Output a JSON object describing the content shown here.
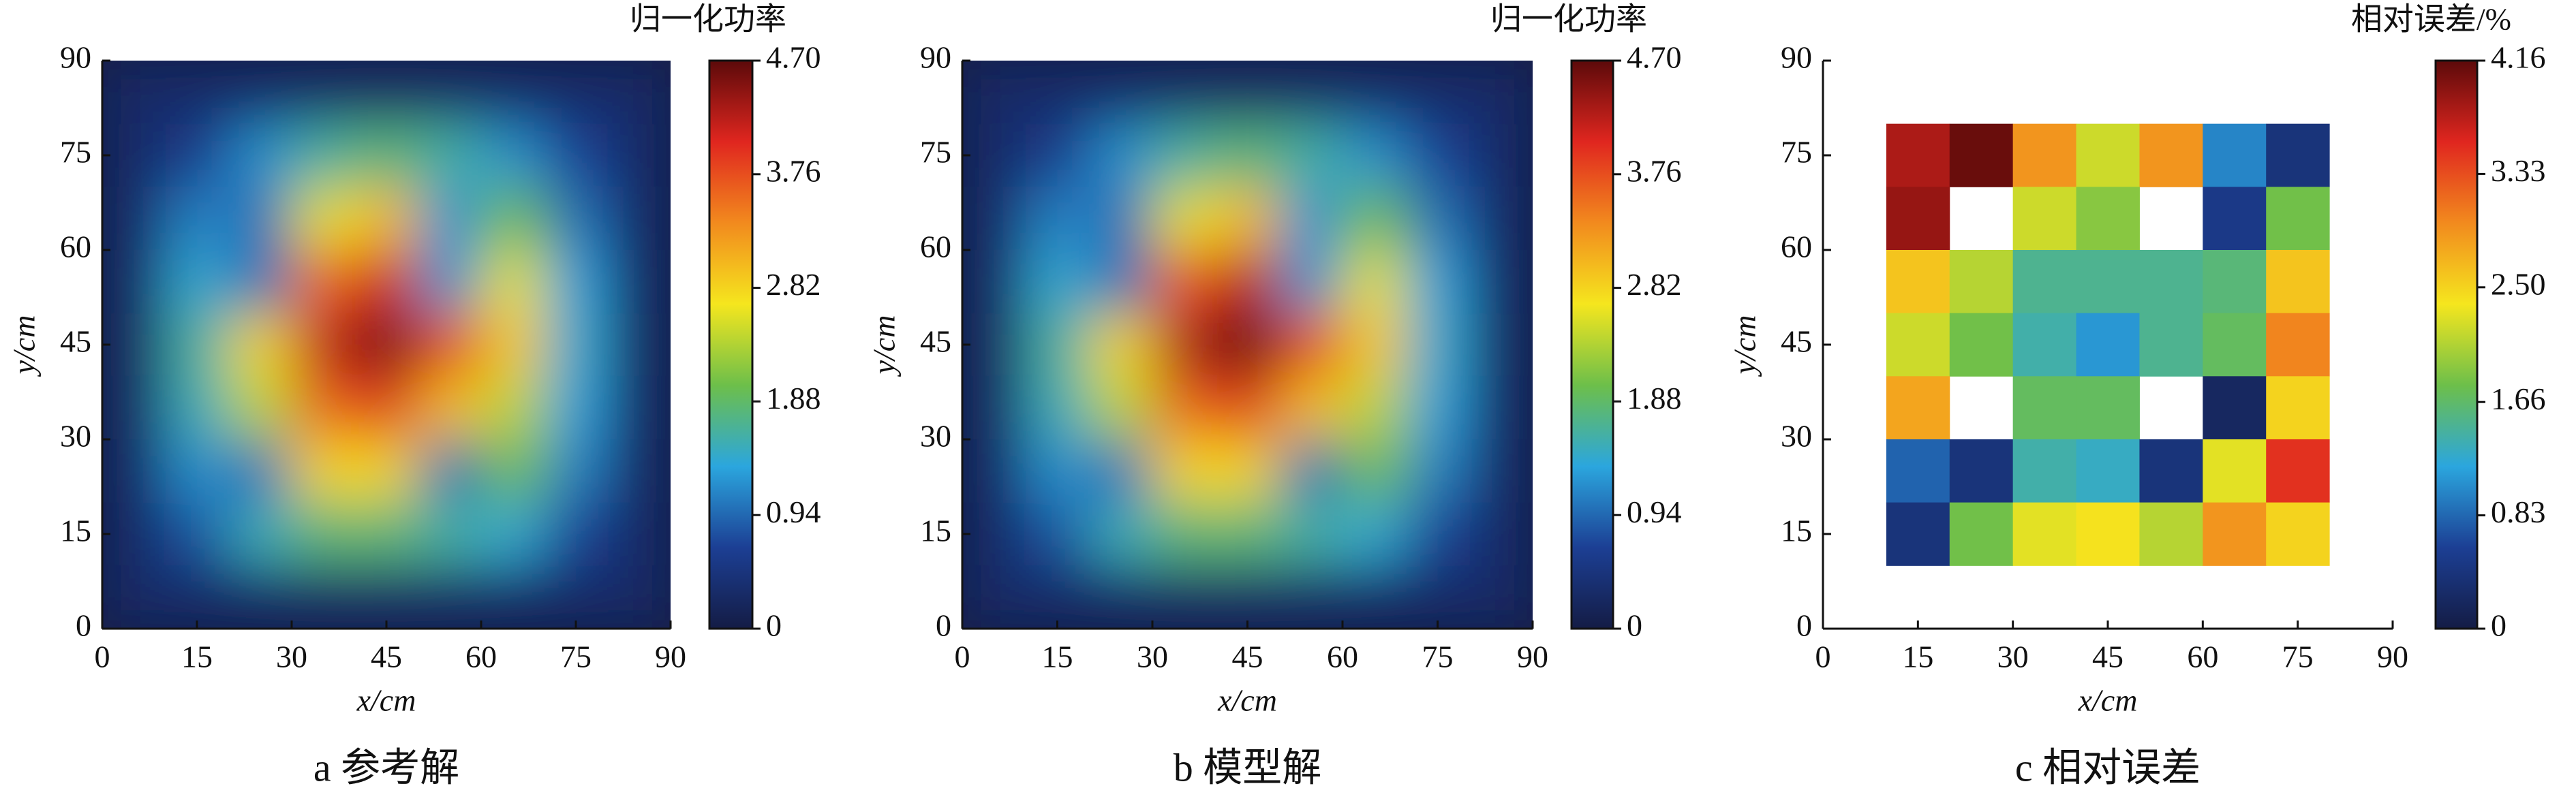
{
  "chart_data": [
    {
      "type": "heatmap",
      "title": "a  参考解",
      "colorbar_title": "归一化功率",
      "xlabel": "x/cm",
      "ylabel": "y/cm",
      "smooth": true,
      "x": [
        5,
        15,
        25,
        35,
        45,
        55,
        65,
        75,
        85
      ],
      "y": [
        85,
        75,
        65,
        55,
        45,
        35,
        25,
        15,
        5
      ],
      "values": [
        [
          0.3,
          0.3,
          0.3,
          0.3,
          0.3,
          0.3,
          0.3,
          0.3,
          0.3
        ],
        [
          0.3,
          0.6,
          1.2,
          1.6,
          1.8,
          1.6,
          1.2,
          0.7,
          0.3
        ],
        [
          0.3,
          1.1,
          1.0,
          2.6,
          3.0,
          1.2,
          2.0,
          1.0,
          0.3
        ],
        [
          0.3,
          1.4,
          1.0,
          3.6,
          4.1,
          1.2,
          2.6,
          1.3,
          0.3
        ],
        [
          0.3,
          1.6,
          2.8,
          4.2,
          4.6,
          3.8,
          2.9,
          1.4,
          0.3
        ],
        [
          0.3,
          1.5,
          2.4,
          3.6,
          3.9,
          3.0,
          2.4,
          1.3,
          0.3
        ],
        [
          0.3,
          1.2,
          1.0,
          2.8,
          2.8,
          1.0,
          2.0,
          1.1,
          0.3
        ],
        [
          0.3,
          0.8,
          1.5,
          1.8,
          1.8,
          1.6,
          1.4,
          0.7,
          0.3
        ],
        [
          0.3,
          0.3,
          0.3,
          0.3,
          0.3,
          0.3,
          0.3,
          0.3,
          0.3
        ]
      ],
      "xlim": [
        0,
        90
      ],
      "ylim": [
        0,
        90
      ],
      "xticks": [
        0,
        15,
        30,
        45,
        60,
        75,
        90
      ],
      "yticks": [
        0,
        15,
        30,
        45,
        60,
        75,
        90
      ],
      "clim": [
        0,
        4.7
      ],
      "cticks": [
        0,
        0.94,
        1.88,
        2.82,
        3.76,
        {
          "value": 4.7,
          "label": "4.70"
        }
      ],
      "colorscale": [
        "#141c45",
        "#1c3f94",
        "#2ba6de",
        "#6dbf4a",
        "#f5e61e",
        "#f28a1e",
        "#e0261f",
        "#5c0a0a"
      ]
    },
    {
      "type": "heatmap",
      "title": "b  模型解",
      "colorbar_title": "归一化功率",
      "xlabel": "x/cm",
      "ylabel": "y/cm",
      "smooth": true,
      "x": [
        5,
        15,
        25,
        35,
        45,
        55,
        65,
        75,
        85
      ],
      "y": [
        85,
        75,
        65,
        55,
        45,
        35,
        25,
        15,
        5
      ],
      "values": [
        [
          0.3,
          0.3,
          0.3,
          0.3,
          0.3,
          0.3,
          0.3,
          0.3,
          0.3
        ],
        [
          0.3,
          0.6,
          1.2,
          1.6,
          1.8,
          1.6,
          1.2,
          0.7,
          0.3
        ],
        [
          0.3,
          1.1,
          1.0,
          2.6,
          3.0,
          1.2,
          2.0,
          1.0,
          0.3
        ],
        [
          0.3,
          1.4,
          1.0,
          3.7,
          4.2,
          1.2,
          2.6,
          1.3,
          0.3
        ],
        [
          0.3,
          1.6,
          2.8,
          4.3,
          4.7,
          3.8,
          2.9,
          1.4,
          0.3
        ],
        [
          0.3,
          1.5,
          2.4,
          3.6,
          3.9,
          3.0,
          2.4,
          1.3,
          0.3
        ],
        [
          0.3,
          1.2,
          1.0,
          2.8,
          2.8,
          1.0,
          2.0,
          1.1,
          0.3
        ],
        [
          0.3,
          0.8,
          1.5,
          1.8,
          1.8,
          1.6,
          1.4,
          0.7,
          0.3
        ],
        [
          0.3,
          0.3,
          0.3,
          0.3,
          0.3,
          0.3,
          0.3,
          0.3,
          0.3
        ]
      ],
      "xlim": [
        0,
        90
      ],
      "ylim": [
        0,
        90
      ],
      "xticks": [
        0,
        15,
        30,
        45,
        60,
        75,
        90
      ],
      "yticks": [
        0,
        15,
        30,
        45,
        60,
        75,
        90
      ],
      "clim": [
        0,
        4.7
      ],
      "cticks": [
        0,
        0.94,
        1.88,
        2.82,
        3.76,
        {
          "value": 4.7,
          "label": "4.70"
        }
      ],
      "colorscale": [
        "#141c45",
        "#1c3f94",
        "#2ba6de",
        "#6dbf4a",
        "#f5e61e",
        "#f28a1e",
        "#e0261f",
        "#5c0a0a"
      ]
    },
    {
      "type": "heatmap",
      "title": "c  相对误差",
      "colorbar_title": "相对误差/%",
      "xlabel": "x/cm",
      "ylabel": "y/cm",
      "smooth": false,
      "x": [
        15,
        25,
        35,
        45,
        55,
        65,
        75
      ],
      "y": [
        75,
        65,
        55,
        45,
        35,
        25,
        15
      ],
      "values": [
        [
          3.8,
          4.1,
          2.9,
          2.2,
          2.9,
          1.0,
          0.4
        ],
        [
          3.9,
          null,
          2.2,
          1.9,
          null,
          0.5,
          1.8
        ],
        [
          2.6,
          2.1,
          1.5,
          1.5,
          1.5,
          1.6,
          2.6
        ],
        [
          2.2,
          1.8,
          1.4,
          1.1,
          1.5,
          1.7,
          3.0
        ],
        [
          2.8,
          null,
          1.7,
          1.7,
          null,
          0.2,
          2.5
        ],
        [
          0.8,
          0.4,
          1.4,
          1.3,
          0.4,
          2.3,
          3.5
        ],
        [
          0.4,
          1.8,
          2.3,
          2.4,
          2.1,
          2.9,
          2.5
        ]
      ],
      "xlim": [
        0,
        90
      ],
      "ylim": [
        0,
        90
      ],
      "xticks": [
        0,
        15,
        30,
        45,
        60,
        75,
        90
      ],
      "yticks": [
        0,
        15,
        30,
        45,
        60,
        75,
        90
      ],
      "clim": [
        0,
        4.16
      ],
      "cticks": [
        0,
        0.83,
        1.66,
        {
          "value": 2.5,
          "label": "2.50"
        },
        3.33,
        4.16
      ],
      "colorscale": [
        "#141c45",
        "#1c3f94",
        "#2ba6de",
        "#6dbf4a",
        "#f5e61e",
        "#f28a1e",
        "#e0261f",
        "#5c0a0a"
      ]
    }
  ]
}
